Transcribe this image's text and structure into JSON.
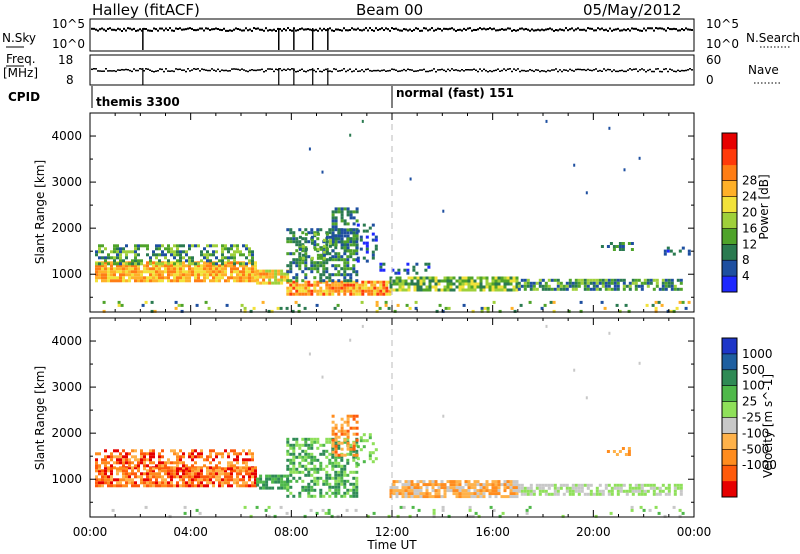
{
  "header": {
    "site": "Halley (fitACF)",
    "beam": "Beam 00",
    "date": "05/May/2012"
  },
  "status_panels": {
    "nsky_label": "N.Sky",
    "nsky_ticks": [
      "10^5",
      "10^0"
    ],
    "nsearch_label": "N.Search",
    "nsearch_ticks": [
      "10^5",
      "10^0"
    ],
    "freq_label_top": "Freq.",
    "freq_label_bottom": "[MHz]",
    "freq_ticks": [
      "18",
      "8"
    ],
    "nave_label": "Nave",
    "nave_ticks": [
      "60",
      "0"
    ],
    "cpid_label": "CPID",
    "cpid_segments": [
      {
        "start_hour": 0,
        "label": "themis 3300"
      },
      {
        "start_hour": 12,
        "label": "normal (fast) 151"
      }
    ],
    "nsky_gap_hours": [
      2.1,
      7.5,
      8.1,
      8.85,
      9.45
    ]
  },
  "chart_data": [
    {
      "type": "heatmap",
      "parameter": "Power",
      "ylabel": "Slant Range [km]",
      "ylim": [
        180,
        4500
      ],
      "yticks": [
        1000,
        2000,
        3000,
        4000
      ],
      "xlim": [
        0,
        24
      ],
      "colorbar": {
        "label": "Power [dB]",
        "ticks": [
          "4",
          "8",
          "12",
          "16",
          "20",
          "24",
          "28"
        ],
        "colors": [
          "#1e28ff",
          "#1e4fa0",
          "#2a7a50",
          "#4fa32a",
          "#9fd03a",
          "#f2e23a",
          "#ffb028",
          "#ff7d14",
          "#ff3a0a",
          "#e60000"
        ]
      },
      "bands": [
        {
          "x0": 0.2,
          "x1": 6.6,
          "r0": 880,
          "r1": 1280,
          "lv": [
            5,
            7
          ],
          "den": 0.9
        },
        {
          "x0": 6.6,
          "x1": 7.8,
          "r0": 780,
          "r1": 1100,
          "lv": [
            4,
            7
          ],
          "den": 0.85
        },
        {
          "x0": 7.8,
          "x1": 11.9,
          "r0": 580,
          "r1": 860,
          "lv": [
            5,
            8
          ],
          "den": 0.9
        },
        {
          "x0": 11.9,
          "x1": 17,
          "r0": 650,
          "r1": 950,
          "lv": [
            2,
            5
          ],
          "den": 0.8
        },
        {
          "x0": 17,
          "x1": 23.5,
          "r0": 640,
          "r1": 900,
          "lv": [
            1,
            4
          ],
          "den": 0.75
        },
        {
          "x0": 0.2,
          "x1": 6.5,
          "r0": 1250,
          "r1": 1650,
          "lv": [
            1,
            4
          ],
          "den": 0.55
        },
        {
          "x0": 7.8,
          "x1": 10.6,
          "r0": 850,
          "r1": 2000,
          "lv": [
            1,
            3
          ],
          "den": 0.55
        },
        {
          "x0": 9.6,
          "x1": 10.6,
          "r0": 1500,
          "r1": 2450,
          "lv": [
            1,
            3
          ],
          "den": 0.6
        },
        {
          "x0": 10.6,
          "x1": 11.4,
          "r0": 1300,
          "r1": 2100,
          "lv": [
            0,
            2
          ],
          "den": 0.3
        },
        {
          "x0": 11.5,
          "x1": 13.5,
          "r0": 1000,
          "r1": 1250,
          "lv": [
            0,
            2
          ],
          "den": 0.3
        },
        {
          "x0": 8.3,
          "x1": 9.6,
          "r0": 1350,
          "r1": 1900,
          "lv": [
            1,
            4
          ],
          "den": 0.35
        },
        {
          "x0": 20.3,
          "x1": 21.5,
          "r0": 1550,
          "r1": 1700,
          "lv": [
            1,
            3
          ],
          "den": 0.4
        },
        {
          "x0": 22.8,
          "x1": 23.8,
          "r0": 1450,
          "r1": 1600,
          "lv": [
            0,
            2
          ],
          "den": 0.3
        }
      ],
      "bands_near": [
        {
          "x0": 0.5,
          "x1": 23.8,
          "r0": 200,
          "r1": 420,
          "lv": [
            1,
            6
          ],
          "den": 0.1
        }
      ],
      "sparse_points": [
        [
          8.7,
          3750,
          1
        ],
        [
          9.2,
          3250,
          1
        ],
        [
          10.3,
          4050,
          2
        ],
        [
          10.8,
          4350,
          2
        ],
        [
          18.1,
          4350,
          1
        ],
        [
          20.6,
          4200,
          1
        ],
        [
          21.8,
          3550,
          1
        ],
        [
          19.7,
          2800,
          1
        ],
        [
          19.2,
          3400,
          1
        ],
        [
          14.0,
          2400,
          1
        ],
        [
          21.2,
          3300,
          1
        ],
        [
          12.7,
          3100,
          1
        ]
      ]
    },
    {
      "type": "heatmap",
      "parameter": "Velocity",
      "ylabel": "Slant Range [km]",
      "ylim": [
        180,
        4500
      ],
      "yticks": [
        1000,
        2000,
        3000,
        4000
      ],
      "xlim": [
        0,
        24
      ],
      "xticks": [
        "00:00",
        "04:00",
        "08:00",
        "12:00",
        "16:00",
        "20:00",
        "00:00"
      ],
      "xlabel": "Time UT",
      "colorbar": {
        "label": "Velocity [m s^-1]",
        "ticks": [
          "1000",
          "500",
          "100",
          "25",
          "-25",
          "-100",
          "-500",
          "-1000"
        ],
        "colors": [
          "#1e36c8",
          "#1e5fa0",
          "#2f8a55",
          "#4fb84a",
          "#8fe05a",
          "#c8c8c8",
          "#ffb24a",
          "#ff8c1e",
          "#ff5a0a",
          "#e60000"
        ]
      },
      "bands": [
        {
          "x0": 0.2,
          "x1": 6.6,
          "r0": 880,
          "r1": 1280,
          "lv": [
            6,
            9
          ],
          "den": 0.85
        },
        {
          "x0": 0.2,
          "x1": 6.5,
          "r0": 1250,
          "r1": 1650,
          "lv": [
            6,
            9
          ],
          "den": 0.5
        },
        {
          "x0": 6.6,
          "x1": 7.8,
          "r0": 780,
          "r1": 1100,
          "lv": [
            2,
            3
          ],
          "den": 0.8
        },
        {
          "x0": 7.8,
          "x1": 10.6,
          "r0": 640,
          "r1": 1900,
          "lv": [
            2,
            4
          ],
          "den": 0.55
        },
        {
          "x0": 9.6,
          "x1": 10.6,
          "r0": 1500,
          "r1": 2400,
          "lv": [
            6,
            8
          ],
          "den": 0.5
        },
        {
          "x0": 10.6,
          "x1": 11.4,
          "r0": 1300,
          "r1": 2000,
          "lv": [
            3,
            4
          ],
          "den": 0.25
        },
        {
          "x0": 11.9,
          "x1": 17,
          "r0": 650,
          "r1": 980,
          "lv": [
            5,
            7
          ],
          "den": 0.8
        },
        {
          "x0": 17,
          "x1": 23.5,
          "r0": 640,
          "r1": 900,
          "lv": [
            4,
            5
          ],
          "den": 0.75
        },
        {
          "x0": 20.3,
          "x1": 21.5,
          "r0": 1550,
          "r1": 1700,
          "lv": [
            6,
            7
          ],
          "den": 0.35
        }
      ],
      "bands_near": [
        {
          "x0": 0.5,
          "x1": 23.8,
          "r0": 200,
          "r1": 420,
          "lv": [
            3,
            5
          ],
          "den": 0.08
        }
      ],
      "sparse_points": [
        [
          8.7,
          3750,
          5
        ],
        [
          9.2,
          3250,
          5
        ],
        [
          10.3,
          4050,
          5
        ],
        [
          10.8,
          4350,
          5
        ],
        [
          18.1,
          4350,
          5
        ],
        [
          20.6,
          4200,
          5
        ],
        [
          21.8,
          3550,
          5
        ],
        [
          19.7,
          2800,
          5
        ],
        [
          19.2,
          3400,
          5
        ],
        [
          14.0,
          2400,
          5
        ]
      ]
    }
  ]
}
